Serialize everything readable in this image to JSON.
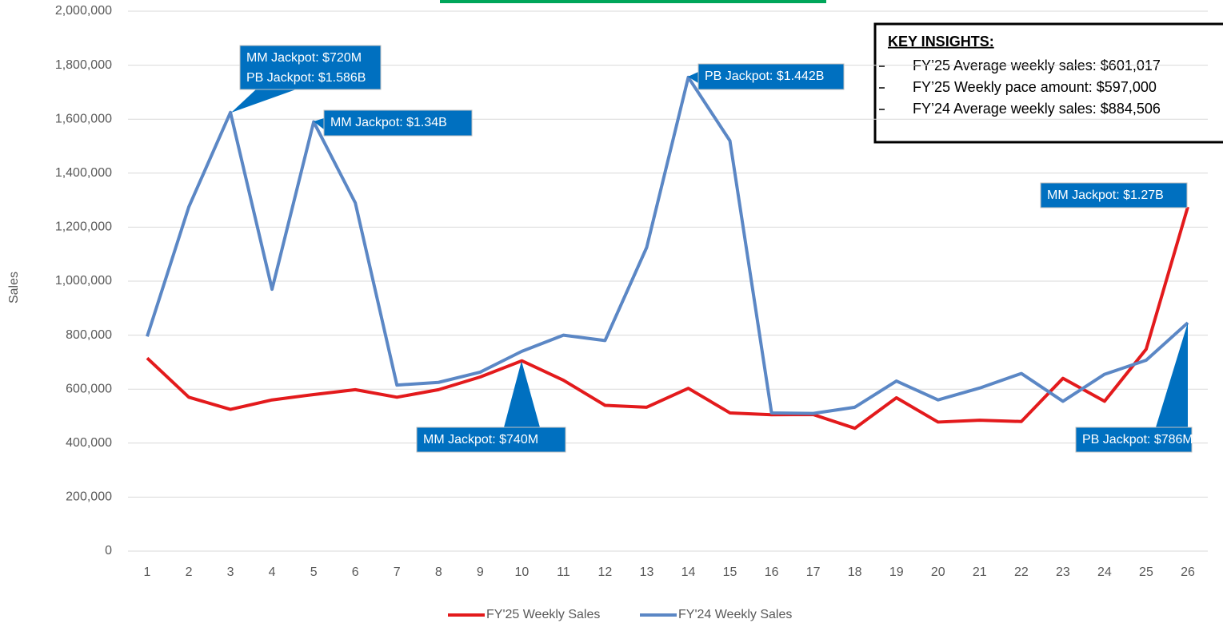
{
  "chart_data": {
    "type": "line",
    "y_label": "Sales",
    "categories": [
      "1",
      "2",
      "3",
      "4",
      "5",
      "6",
      "7",
      "8",
      "9",
      "10",
      "11",
      "12",
      "13",
      "14",
      "15",
      "16",
      "17",
      "18",
      "19",
      "20",
      "21",
      "22",
      "23",
      "24",
      "25",
      "26"
    ],
    "series": [
      {
        "name": "FY'25 Weekly Sales",
        "color": "#e31a1c",
        "values": [
          715000,
          570000,
          525000,
          560000,
          580000,
          598000,
          570000,
          598000,
          645000,
          705000,
          633000,
          540000,
          533000,
          603000,
          512000,
          505000,
          506000,
          455000,
          568000,
          478000,
          485000,
          480000,
          640000,
          555000,
          748000,
          1275000
        ]
      },
      {
        "name": "FY'24 Weekly Sales",
        "color": "#5b87c5",
        "values": [
          795000,
          1275000,
          1625000,
          970000,
          1590000,
          1290000,
          615000,
          625000,
          663000,
          740000,
          800000,
          780000,
          1125000,
          1755000,
          1520000,
          512000,
          510000,
          533000,
          630000,
          560000,
          604000,
          658000,
          555000,
          655000,
          707000,
          846000
        ]
      }
    ],
    "ylim": [
      0,
      2000000
    ],
    "yticks": [
      0,
      {
        "value": 200000,
        "label": "200,000"
      },
      {
        "value": 400000,
        "label": "400,000"
      },
      {
        "value": 600000,
        "label": "600,000"
      },
      {
        "value": 800000,
        "label": "800,000"
      },
      {
        "value": 1000000,
        "label": "1,000,000"
      },
      {
        "value": 1200000,
        "label": "1,200,000"
      },
      {
        "value": 1400000,
        "label": "1,400,000"
      },
      {
        "value": 1600000,
        "label": "1,600,000"
      },
      {
        "value": 1800000,
        "label": "1,800,000"
      },
      {
        "value": 2000000,
        "label": "2,000,000"
      }
    ],
    "grid": true,
    "legend": "bottom",
    "annotations": [
      "MM Jackpot: $720M",
      "PB Jackpot: $1.586B",
      "MM Jackpot: $1.34B",
      "PB Jackpot: $1.442B",
      "MM Jackpot: $1.27B",
      "MM Jackpot: $740M",
      "PB Jackpot: $786M"
    ],
    "key_insights": {
      "title": "KEY INSIGHTS:",
      "items": [
        "FY’25 Average weekly sales: $601,017",
        "FY’25 Weekly pace amount: $597,000",
        "FY’24 Average weekly sales: $884,506"
      ]
    }
  }
}
